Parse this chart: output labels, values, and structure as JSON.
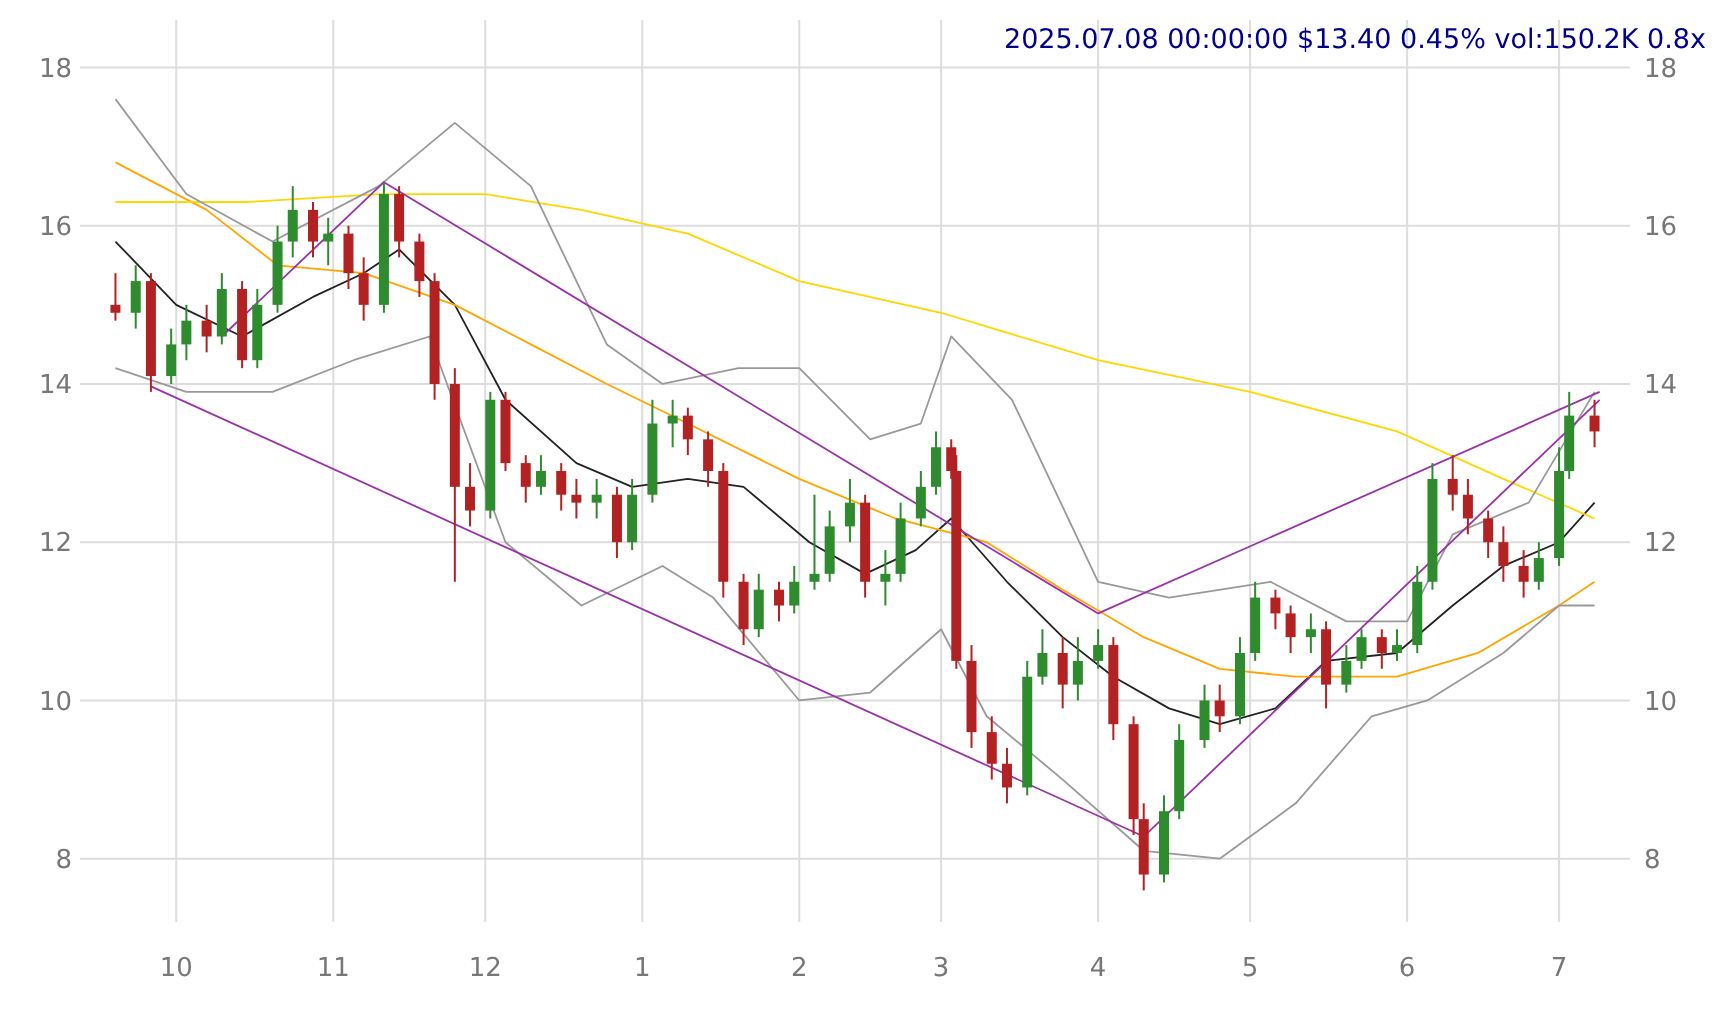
{
  "chart_data": {
    "type": "candlestick",
    "title": "2025.07.08 00:00:00 $13.40 0.45% vol:150.2K 0.8x",
    "x": [
      "2024-09-19",
      "2024-09-23",
      "2024-09-26",
      "2024-09-30",
      "2024-10-03",
      "2024-10-07",
      "2024-10-10",
      "2024-10-14",
      "2024-10-17",
      "2024-10-21",
      "2024-10-24",
      "2024-10-28",
      "2024-10-31",
      "2024-11-04",
      "2024-11-07",
      "2024-11-11",
      "2024-11-14",
      "2024-11-18",
      "2024-11-21",
      "2024-11-25",
      "2024-11-28",
      "2024-12-02",
      "2024-12-05",
      "2024-12-09",
      "2024-12-12",
      "2024-12-16",
      "2024-12-19",
      "2024-12-23",
      "2024-12-27",
      "2024-12-30",
      "2025-01-03",
      "2025-01-07",
      "2025-01-10",
      "2025-01-14",
      "2025-01-17",
      "2025-01-21",
      "2025-01-24",
      "2025-01-28",
      "2025-01-31",
      "2025-02-04",
      "2025-02-07",
      "2025-02-11",
      "2025-02-14",
      "2025-02-18",
      "2025-02-21",
      "2025-02-25",
      "2025-02-28",
      "2025-03-03",
      "2025-03-04",
      "2025-03-07",
      "2025-03-11",
      "2025-03-14",
      "2025-03-18",
      "2025-03-21",
      "2025-03-25",
      "2025-03-28",
      "2025-04-01",
      "2025-04-04",
      "2025-04-08",
      "2025-04-10",
      "2025-04-14",
      "2025-04-17",
      "2025-04-22",
      "2025-04-25",
      "2025-04-29",
      "2025-05-02",
      "2025-05-06",
      "2025-05-09",
      "2025-05-13",
      "2025-05-16",
      "2025-05-20",
      "2025-05-23",
      "2025-05-27",
      "2025-05-30",
      "2025-06-03",
      "2025-06-06",
      "2025-06-10",
      "2025-06-13",
      "2025-06-17",
      "2025-06-20",
      "2025-06-24",
      "2025-06-27",
      "2025-07-01",
      "2025-07-03",
      "2025-07-08"
    ],
    "ohlc": [
      [
        15.0,
        15.4,
        14.8,
        14.9
      ],
      [
        14.9,
        15.5,
        14.7,
        15.3
      ],
      [
        15.3,
        15.4,
        13.9,
        14.1
      ],
      [
        14.1,
        14.7,
        14.0,
        14.5
      ],
      [
        14.5,
        15.0,
        14.3,
        14.8
      ],
      [
        14.8,
        15.0,
        14.4,
        14.6
      ],
      [
        14.6,
        15.4,
        14.5,
        15.2
      ],
      [
        15.2,
        15.3,
        14.2,
        14.3
      ],
      [
        14.3,
        15.2,
        14.2,
        15.0
      ],
      [
        15.0,
        16.0,
        14.9,
        15.8
      ],
      [
        15.8,
        16.5,
        15.6,
        16.2
      ],
      [
        16.2,
        16.3,
        15.6,
        15.8
      ],
      [
        15.8,
        16.1,
        15.5,
        15.9
      ],
      [
        15.9,
        16.0,
        15.2,
        15.4
      ],
      [
        15.4,
        15.6,
        14.8,
        15.0
      ],
      [
        15.0,
        16.55,
        14.9,
        16.4
      ],
      [
        16.4,
        16.5,
        15.6,
        15.8
      ],
      [
        15.8,
        15.9,
        15.1,
        15.3
      ],
      [
        15.3,
        15.4,
        13.8,
        14.0
      ],
      [
        14.0,
        14.2,
        11.5,
        12.7
      ],
      [
        12.7,
        13.0,
        12.2,
        12.4
      ],
      [
        12.4,
        13.9,
        12.3,
        13.8
      ],
      [
        13.8,
        13.9,
        12.9,
        13.0
      ],
      [
        13.0,
        13.1,
        12.5,
        12.7
      ],
      [
        12.7,
        13.1,
        12.6,
        12.9
      ],
      [
        12.9,
        13.0,
        12.4,
        12.6
      ],
      [
        12.6,
        12.8,
        12.3,
        12.5
      ],
      [
        12.5,
        12.8,
        12.3,
        12.6
      ],
      [
        12.6,
        12.7,
        11.8,
        12.0
      ],
      [
        12.0,
        12.8,
        11.9,
        12.6
      ],
      [
        12.6,
        13.8,
        12.5,
        13.5
      ],
      [
        13.5,
        13.8,
        13.2,
        13.6
      ],
      [
        13.6,
        13.7,
        13.1,
        13.3
      ],
      [
        13.3,
        13.4,
        12.7,
        12.9
      ],
      [
        12.9,
        13.0,
        11.3,
        11.5
      ],
      [
        11.5,
        11.6,
        10.7,
        10.9
      ],
      [
        10.9,
        11.6,
        10.8,
        11.4
      ],
      [
        11.4,
        11.5,
        11.0,
        11.2
      ],
      [
        11.2,
        11.7,
        11.1,
        11.5
      ],
      [
        11.5,
        12.6,
        11.4,
        11.6
      ],
      [
        11.6,
        12.4,
        11.5,
        12.2
      ],
      [
        12.2,
        12.8,
        12.0,
        12.5
      ],
      [
        12.5,
        12.6,
        11.3,
        11.5
      ],
      [
        11.5,
        11.9,
        11.2,
        11.6
      ],
      [
        11.6,
        12.5,
        11.5,
        12.3
      ],
      [
        12.3,
        12.9,
        12.2,
        12.7
      ],
      [
        12.7,
        13.4,
        12.6,
        13.2
      ],
      [
        13.2,
        13.3,
        12.8,
        12.9
      ],
      [
        12.9,
        13.1,
        10.4,
        10.5
      ],
      [
        10.5,
        10.7,
        9.4,
        9.6
      ],
      [
        9.6,
        9.8,
        9.0,
        9.2
      ],
      [
        9.2,
        9.4,
        8.7,
        8.9
      ],
      [
        8.9,
        10.5,
        8.8,
        10.3
      ],
      [
        10.3,
        10.9,
        10.2,
        10.6
      ],
      [
        10.6,
        10.8,
        9.9,
        10.2
      ],
      [
        10.2,
        10.8,
        10.0,
        10.5
      ],
      [
        10.5,
        10.9,
        10.4,
        10.7
      ],
      [
        10.7,
        10.8,
        9.5,
        9.7
      ],
      [
        9.7,
        9.8,
        8.3,
        8.5
      ],
      [
        8.5,
        8.7,
        7.6,
        7.8
      ],
      [
        7.8,
        8.8,
        7.7,
        8.6
      ],
      [
        8.6,
        9.7,
        8.5,
        9.5
      ],
      [
        9.5,
        10.2,
        9.4,
        10.0
      ],
      [
        10.0,
        10.2,
        9.6,
        9.8
      ],
      [
        9.8,
        10.8,
        9.7,
        10.6
      ],
      [
        10.6,
        11.5,
        10.5,
        11.3
      ],
      [
        11.3,
        11.4,
        10.9,
        11.1
      ],
      [
        11.1,
        11.2,
        10.6,
        10.8
      ],
      [
        10.8,
        11.1,
        10.6,
        10.9
      ],
      [
        10.9,
        11.0,
        9.9,
        10.2
      ],
      [
        10.2,
        10.7,
        10.1,
        10.5
      ],
      [
        10.5,
        10.9,
        10.4,
        10.8
      ],
      [
        10.8,
        10.9,
        10.4,
        10.6
      ],
      [
        10.6,
        10.9,
        10.5,
        10.7
      ],
      [
        10.7,
        11.7,
        10.6,
        11.5
      ],
      [
        11.5,
        13.0,
        11.4,
        12.8
      ],
      [
        12.8,
        13.1,
        12.4,
        12.6
      ],
      [
        12.6,
        12.8,
        12.1,
        12.3
      ],
      [
        12.3,
        12.4,
        11.8,
        12.0
      ],
      [
        12.0,
        12.2,
        11.5,
        11.7
      ],
      [
        11.7,
        11.9,
        11.3,
        11.5
      ],
      [
        11.5,
        12.0,
        11.4,
        11.8
      ],
      [
        11.8,
        13.2,
        11.7,
        12.9
      ],
      [
        12.9,
        13.9,
        12.8,
        13.6
      ],
      [
        13.6,
        13.8,
        13.2,
        13.4
      ]
    ],
    "series": [
      {
        "type": "line",
        "color": "#222222",
        "x": [
          "2024-09-19",
          "2024-10-01",
          "2024-10-14",
          "2024-10-28",
          "2024-11-07",
          "2024-11-14",
          "2024-11-25",
          "2024-12-05",
          "2024-12-19",
          "2024-12-30",
          "2025-01-10",
          "2025-01-21",
          "2025-02-03",
          "2025-02-14",
          "2025-02-24",
          "2025-03-03",
          "2025-03-14",
          "2025-03-25",
          "2025-04-04",
          "2025-04-15",
          "2025-04-25",
          "2025-05-06",
          "2025-05-16",
          "2025-05-30",
          "2025-06-10",
          "2025-06-20",
          "2025-07-01",
          "2025-07-08"
        ],
        "values": [
          15.8,
          15.0,
          14.6,
          15.1,
          15.4,
          15.7,
          15.0,
          13.8,
          13.0,
          12.7,
          12.8,
          12.7,
          12.0,
          11.6,
          11.9,
          12.3,
          11.5,
          10.8,
          10.3,
          9.9,
          9.7,
          9.9,
          10.5,
          10.6,
          11.2,
          11.7,
          12.0,
          12.5
        ]
      },
      {
        "type": "line",
        "color": "#ffa500",
        "x": [
          "2024-09-19",
          "2024-10-07",
          "2024-10-21",
          "2024-11-07",
          "2024-11-25",
          "2024-12-10",
          "2024-12-25",
          "2025-01-10",
          "2025-02-01",
          "2025-02-20",
          "2025-03-10",
          "2025-03-25",
          "2025-04-10",
          "2025-04-25",
          "2025-05-10",
          "2025-05-30",
          "2025-06-15",
          "2025-07-01",
          "2025-07-08"
        ],
        "values": [
          16.8,
          16.2,
          15.5,
          15.4,
          15.0,
          14.5,
          14.0,
          13.5,
          12.8,
          12.3,
          12.0,
          11.4,
          10.8,
          10.4,
          10.3,
          10.3,
          10.6,
          11.2,
          11.5
        ]
      },
      {
        "type": "line",
        "color": "#ffd700",
        "x": [
          "2024-09-19",
          "2024-10-15",
          "2024-11-10",
          "2024-12-01",
          "2024-12-20",
          "2025-01-10",
          "2025-02-01",
          "2025-03-01",
          "2025-04-01",
          "2025-05-01",
          "2025-05-30",
          "2025-06-20",
          "2025-07-08"
        ],
        "values": [
          16.3,
          16.3,
          16.4,
          16.4,
          16.2,
          15.9,
          15.3,
          14.9,
          14.3,
          13.9,
          13.4,
          12.8,
          12.3
        ]
      },
      {
        "type": "line",
        "color": "#999999",
        "x": [
          "2024-09-19",
          "2024-10-03",
          "2024-10-20",
          "2024-11-10",
          "2024-11-25",
          "2024-12-10",
          "2024-12-25",
          "2025-01-05",
          "2025-01-20",
          "2025-02-01",
          "2025-02-15",
          "2025-02-25",
          "2025-03-03",
          "2025-03-15",
          "2025-04-01",
          "2025-04-15",
          "2025-05-05",
          "2025-05-20",
          "2025-06-01",
          "2025-06-10",
          "2025-06-25",
          "2025-07-08"
        ],
        "values": [
          17.6,
          16.4,
          15.8,
          16.5,
          17.3,
          16.5,
          14.5,
          14.0,
          14.2,
          14.2,
          13.3,
          13.5,
          14.6,
          13.8,
          11.5,
          11.3,
          11.5,
          11.0,
          11.0,
          12.1,
          12.5,
          13.9
        ]
      },
      {
        "type": "line",
        "color": "#999999",
        "x": [
          "2024-09-19",
          "2024-10-03",
          "2024-10-20",
          "2024-11-05",
          "2024-11-20",
          "2024-12-05",
          "2024-12-20",
          "2025-01-05",
          "2025-01-15",
          "2025-02-01",
          "2025-02-15",
          "2025-03-01",
          "2025-03-10",
          "2025-03-25",
          "2025-04-10",
          "2025-04-25",
          "2025-05-10",
          "2025-05-25",
          "2025-06-05",
          "2025-06-20",
          "2025-07-01",
          "2025-07-08"
        ],
        "values": [
          14.2,
          13.9,
          13.9,
          14.3,
          14.6,
          12.0,
          11.2,
          11.7,
          11.3,
          10.0,
          10.1,
          10.9,
          9.8,
          9.0,
          8.1,
          8.0,
          8.7,
          9.8,
          10.0,
          10.6,
          11.2,
          11.2
        ]
      },
      {
        "type": "line",
        "color": "#9932a8",
        "x": [
          "2024-10-10",
          "2024-11-11",
          "2025-04-01",
          "2025-07-09"
        ],
        "values": [
          14.6,
          16.55,
          11.1,
          13.9
        ]
      },
      {
        "type": "line",
        "color": "#9932a8",
        "x": [
          "2024-09-26",
          "2025-04-10",
          "2025-07-09"
        ],
        "values": [
          13.97,
          8.28,
          13.8
        ]
      }
    ],
    "xlim": [
      "2024-09-12",
      "2025-07-15"
    ],
    "xticks": [
      {
        "value": "2024-10-01",
        "label": "10"
      },
      {
        "value": "2024-11-01",
        "label": "11"
      },
      {
        "value": "2024-12-01",
        "label": "12"
      },
      {
        "value": "2025-01-01",
        "label": "1"
      },
      {
        "value": "2025-02-01",
        "label": "2"
      },
      {
        "value": "2025-03-01",
        "label": "3"
      },
      {
        "value": "2025-04-01",
        "label": "4"
      },
      {
        "value": "2025-05-01",
        "label": "5"
      },
      {
        "value": "2025-06-01",
        "label": "6"
      },
      {
        "value": "2025-07-01",
        "label": "7"
      }
    ],
    "ylim": [
      7.2,
      18.6
    ],
    "yticks": [
      8,
      10,
      12,
      14,
      16,
      18
    ],
    "y2lim": [
      7.2,
      18.6
    ],
    "y2ticks": [
      8,
      10,
      12,
      14,
      16,
      18
    ],
    "grid": true
  }
}
